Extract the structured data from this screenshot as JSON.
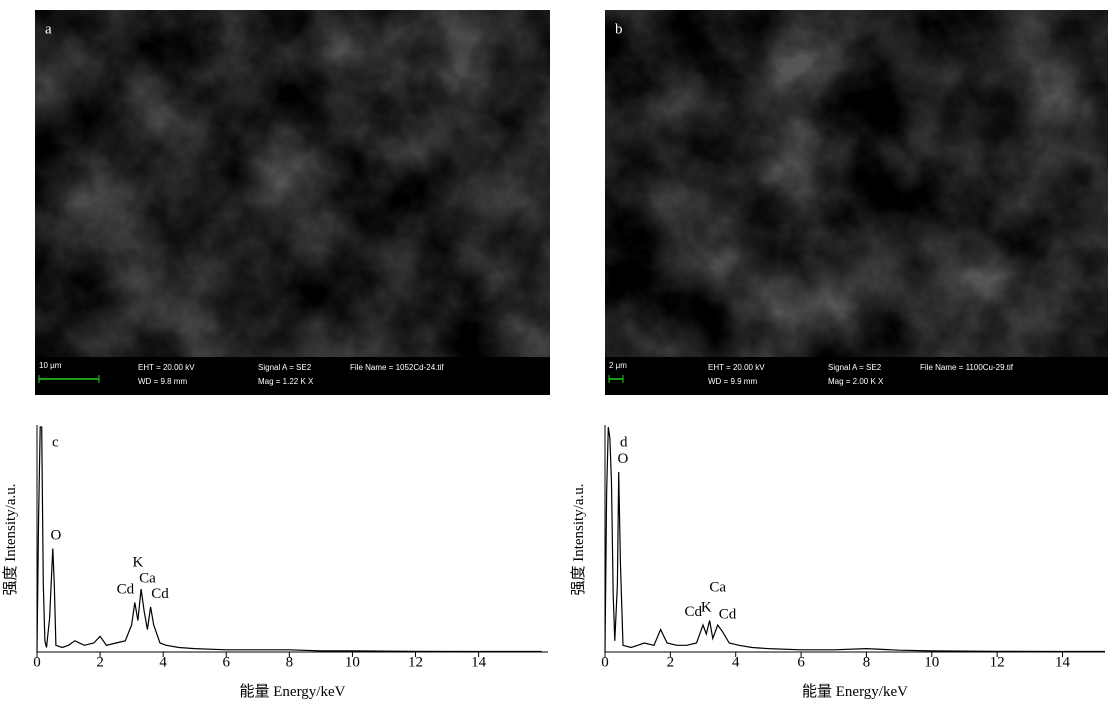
{
  "panels": [
    {
      "label": "a",
      "scale_bar": "10 μm",
      "info": [
        "EHT = 20.00 kV",
        "WD = 9.8 mm",
        "Signal A = SE2",
        "Mag =   1.22 K X",
        "File Name = 1052Cd-24.tif"
      ]
    },
    {
      "label": "b",
      "scale_bar": "2 μm",
      "info": [
        "EHT = 20.00 kV",
        "WD = 9.9 mm",
        "Signal A = SE2",
        "Mag =   2.00 K X",
        "File Name = 1100Cu-29.tif"
      ]
    }
  ],
  "chart_data": [
    {
      "type": "line",
      "panel_label": "c",
      "xlabel": "能量 Energy/keV",
      "ylabel": "强度 Intensity/a.u.",
      "color": "#000000",
      "x": [
        0,
        0.05,
        0.1,
        0.15,
        0.2,
        0.25,
        0.3,
        0.4,
        0.5,
        0.55,
        0.6,
        0.8,
        1.0,
        1.2,
        1.5,
        1.8,
        2.0,
        2.2,
        2.5,
        2.8,
        3.0,
        3.1,
        3.2,
        3.3,
        3.4,
        3.5,
        3.6,
        3.7,
        3.9,
        4.1,
        4.5,
        5,
        6,
        7,
        8,
        9,
        10,
        12,
        14,
        16
      ],
      "values": [
        0,
        60,
        100,
        100,
        30,
        5,
        2,
        15,
        46,
        30,
        3,
        2,
        3,
        5,
        3,
        4,
        7,
        3,
        4,
        5,
        12,
        22,
        14,
        28,
        18,
        10,
        20,
        12,
        4,
        3,
        2,
        1.5,
        1,
        1,
        1,
        0.5,
        0.5,
        0.3,
        0.2,
        0.2
      ],
      "xlim": [
        0,
        16.2
      ],
      "xticks": [
        0,
        2,
        4,
        6,
        8,
        10,
        12,
        14
      ],
      "ylim": [
        0,
        100
      ],
      "annotations": [
        {
          "text": "O",
          "x": 0.6,
          "y": 50
        },
        {
          "text": "Cd",
          "x": 2.8,
          "y": 26
        },
        {
          "text": "K",
          "x": 3.2,
          "y": 38
        },
        {
          "text": "Ca",
          "x": 3.5,
          "y": 31
        },
        {
          "text": "Cd",
          "x": 3.9,
          "y": 24
        }
      ]
    },
    {
      "type": "line",
      "panel_label": "d",
      "xlabel": "能量 Energy/keV",
      "ylabel": "强度 Intensity/a.u.",
      "color": "#000000",
      "x": [
        0,
        0.05,
        0.1,
        0.15,
        0.2,
        0.25,
        0.3,
        0.38,
        0.42,
        0.47,
        0.55,
        0.8,
        1.0,
        1.2,
        1.5,
        1.7,
        1.9,
        2.2,
        2.5,
        2.8,
        3.0,
        3.1,
        3.2,
        3.3,
        3.45,
        3.6,
        3.8,
        4.1,
        4.5,
        5,
        6,
        7,
        8,
        9,
        10,
        12,
        14,
        15.3
      ],
      "values": [
        0,
        70,
        100,
        95,
        75,
        25,
        5,
        30,
        80,
        40,
        3,
        2,
        3,
        4,
        3,
        10,
        4,
        3,
        3,
        4,
        12,
        8,
        14,
        6,
        12,
        9,
        4,
        3,
        2,
        1.5,
        1,
        1,
        1.5,
        0.8,
        0.5,
        0.3,
        0.2,
        0.2
      ],
      "xlim": [
        0,
        15.3
      ],
      "xticks": [
        0,
        2,
        4,
        6,
        8,
        10,
        12,
        14
      ],
      "ylim": [
        0,
        100
      ],
      "annotations": [
        {
          "text": "O",
          "x": 0.55,
          "y": 84
        },
        {
          "text": "Cd",
          "x": 2.7,
          "y": 16
        },
        {
          "text": "K",
          "x": 3.1,
          "y": 18
        },
        {
          "text": "Ca",
          "x": 3.45,
          "y": 27
        },
        {
          "text": "Cd",
          "x": 3.75,
          "y": 15
        }
      ]
    }
  ]
}
